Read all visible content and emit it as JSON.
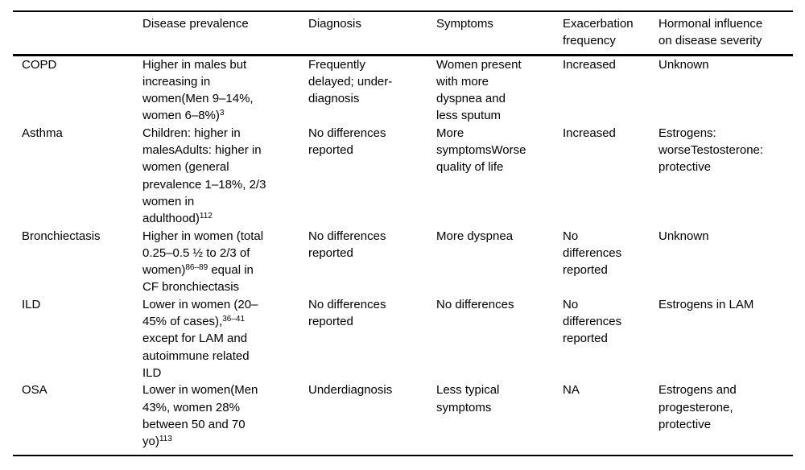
{
  "meta": {
    "background_color": "#ffffff",
    "text_color": "#000000",
    "rule_color": "#000000"
  },
  "table": {
    "headers": [
      "",
      "Disease prevalence",
      "Diagnosis",
      "Symptoms",
      "Exacerbation\nfrequency",
      "Hormonal influence\non disease severity"
    ],
    "rows": [
      {
        "disease": "COPD",
        "prevalence": [
          {
            "text": "Higher in males but\nincreasing in\nwomen(Men 9–14%,\nwomen 6–8%)"
          },
          {
            "text": "3",
            "sup": true
          }
        ],
        "diagnosis": "Frequently\ndelayed; under-\ndiagnosis",
        "symptoms": "Women present\nwith more\ndyspnea and\nless sputum",
        "exacerbation": "Increased",
        "hormonal": "Unknown"
      },
      {
        "disease": "Asthma",
        "prevalence": [
          {
            "text": "Children: higher in\nmalesAdults: higher in\nwomen (general\nprevalence 1–18%, 2/3\nwomen in\nadulthood)"
          },
          {
            "text": "112",
            "sup": true
          }
        ],
        "diagnosis": "No differences\nreported",
        "symptoms": "More\nsymptomsWorse\nquality of life",
        "exacerbation": "Increased",
        "hormonal": "Estrogens:\nworseTestosterone:\nprotective"
      },
      {
        "disease": "Bronchiectasis",
        "prevalence": [
          {
            "text": "Higher in women (total\n0.25–0.5 ½ to 2/3 of\nwomen)"
          },
          {
            "text": "86–89",
            "sup": true
          },
          {
            "text": " equal in\nCF bronchiectasis"
          }
        ],
        "diagnosis": "No differences\nreported",
        "symptoms": "More dyspnea",
        "exacerbation": "No\ndifferences\nreported",
        "hormonal": "Unknown"
      },
      {
        "disease": "ILD",
        "prevalence": [
          {
            "text": "Lower in women (20–\n45% of cases),"
          },
          {
            "text": "36–41",
            "sup": true
          },
          {
            "text": "\nexcept for LAM and\nautoimmune related\nILD"
          }
        ],
        "diagnosis": "No differences\nreported",
        "symptoms": "No differences",
        "exacerbation": "No\ndifferences\nreported",
        "hormonal": "Estrogens in LAM"
      },
      {
        "disease": "OSA",
        "prevalence": [
          {
            "text": "Lower in women(Men\n43%, women 28%\nbetween 50 and 70\nyo)"
          },
          {
            "text": "113",
            "sup": true
          }
        ],
        "diagnosis": "Underdiagnosis",
        "symptoms": "Less typical\nsymptoms",
        "exacerbation": "NA",
        "hormonal": "Estrogens and\nprogesterone,\nprotective"
      }
    ]
  }
}
